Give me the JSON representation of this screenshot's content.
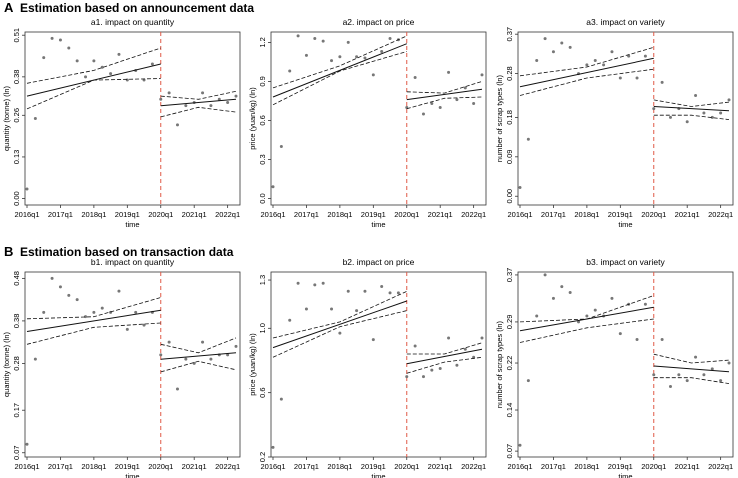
{
  "sections": [
    {
      "letter": "A",
      "title": "Estimation based on announcement data"
    },
    {
      "letter": "B",
      "title": "Estimation based on transaction data"
    }
  ],
  "chart_data": [
    {
      "type": "scatter",
      "section": 0,
      "panel": 0,
      "title": "a1. impact on quantity",
      "xlabel": "time",
      "ylabel": "quantity (tonne) (ln)",
      "xticks": [
        "2016q1",
        "2017q1",
        "2018q1",
        "2019q1",
        "2020q1",
        "2021q1",
        "2022q1"
      ],
      "yticks": [
        "0.00",
        "0.13",
        "0.26",
        "0.38",
        "0.51"
      ],
      "ylim": [
        -0.02,
        0.52
      ],
      "cutoff": "2020q1",
      "points": [
        [
          0,
          0.03
        ],
        [
          1,
          0.25
        ],
        [
          2,
          0.44
        ],
        [
          3,
          0.5
        ],
        [
          4,
          0.495
        ],
        [
          5,
          0.47
        ],
        [
          6,
          0.43
        ],
        [
          7,
          0.38
        ],
        [
          8,
          0.43
        ],
        [
          9,
          0.41
        ],
        [
          10,
          0.39
        ],
        [
          11,
          0.45
        ],
        [
          12,
          0.37
        ],
        [
          13,
          0.4
        ],
        [
          14,
          0.37
        ],
        [
          15,
          0.42
        ],
        [
          16,
          0.31
        ],
        [
          17,
          0.33
        ],
        [
          18,
          0.23
        ],
        [
          19,
          0.29
        ],
        [
          20,
          0.3
        ],
        [
          21,
          0.33
        ],
        [
          22,
          0.29
        ],
        [
          23,
          0.31
        ],
        [
          24,
          0.3
        ],
        [
          25,
          0.32
        ]
      ],
      "fit_pre": {
        "start": [
          0,
          0.32
        ],
        "end": [
          16,
          0.42
        ]
      },
      "ci_pre": {
        "upper": [
          [
            0,
            0.36
          ],
          [
            8,
            0.4
          ],
          [
            16,
            0.47
          ]
        ],
        "lower": [
          [
            0,
            0.28
          ],
          [
            8,
            0.37
          ],
          [
            16,
            0.375
          ]
        ]
      },
      "fit_post": {
        "start": [
          16,
          0.29
        ],
        "end": [
          25,
          0.31
        ]
      },
      "ci_post": {
        "upper": [
          [
            16,
            0.32
          ],
          [
            20.5,
            0.31
          ],
          [
            25,
            0.335
          ]
        ],
        "lower": [
          [
            16,
            0.255
          ],
          [
            20.5,
            0.285
          ],
          [
            25,
            0.27
          ]
        ]
      }
    },
    {
      "type": "scatter",
      "section": 0,
      "panel": 1,
      "title": "a2. impact on price",
      "xlabel": "time",
      "ylabel": "price (yuan/kg) (ln)",
      "xticks": [
        "2016q1",
        "2017q1",
        "2018q1",
        "2019q1",
        "2020q1",
        "2021q1",
        "2022q1"
      ],
      "yticks": [
        "0.0",
        "0.3",
        "0.6",
        "0.9",
        "1.2"
      ],
      "ylim": [
        -0.05,
        1.28
      ],
      "cutoff": "2020q1",
      "points": [
        [
          0,
          0.09
        ],
        [
          1,
          0.4
        ],
        [
          2,
          0.98
        ],
        [
          3,
          1.25
        ],
        [
          4,
          1.1
        ],
        [
          5,
          1.23
        ],
        [
          6,
          1.21
        ],
        [
          7,
          1.06
        ],
        [
          8,
          1.09
        ],
        [
          9,
          1.2
        ],
        [
          10,
          1.09
        ],
        [
          11,
          1.08
        ],
        [
          12,
          0.95
        ],
        [
          13,
          1.13
        ],
        [
          14,
          1.23
        ],
        [
          15,
          1.22
        ],
        [
          16,
          0.7
        ],
        [
          17,
          0.93
        ],
        [
          18,
          0.65
        ],
        [
          19,
          0.73
        ],
        [
          20,
          0.7
        ],
        [
          21,
          0.97
        ],
        [
          22,
          0.76
        ],
        [
          23,
          0.85
        ],
        [
          24,
          0.73
        ],
        [
          25,
          0.95
        ]
      ],
      "fit_pre": {
        "start": [
          0,
          0.78
        ],
        "end": [
          16,
          1.19
        ]
      },
      "ci_pre": {
        "upper": [
          [
            0,
            0.85
          ],
          [
            8,
            1.02
          ],
          [
            16,
            1.25
          ]
        ],
        "lower": [
          [
            0,
            0.72
          ],
          [
            8,
            0.98
          ],
          [
            16,
            1.13
          ]
        ]
      },
      "fit_post": {
        "start": [
          16,
          0.76
        ],
        "end": [
          25,
          0.84
        ]
      },
      "ci_post": {
        "upper": [
          [
            16,
            0.82
          ],
          [
            20.5,
            0.81
          ],
          [
            25,
            0.9
          ]
        ],
        "lower": [
          [
            16,
            0.69
          ],
          [
            20.5,
            0.77
          ],
          [
            25,
            0.78
          ]
        ]
      }
    },
    {
      "type": "scatter",
      "section": 0,
      "panel": 2,
      "title": "a3. impact on variety",
      "xlabel": "time",
      "ylabel": "number of scrap types (ln)",
      "xticks": [
        "2016q1",
        "2017q1",
        "2018q1",
        "2019q1",
        "2020q1",
        "2021q1",
        "2022q1"
      ],
      "yticks": [
        "0.00",
        "0.09",
        "0.18",
        "0.28",
        "0.37"
      ],
      "ylim": [
        -0.02,
        0.375
      ],
      "cutoff": "2020q1",
      "points": [
        [
          0,
          0.02
        ],
        [
          1,
          0.13
        ],
        [
          2,
          0.31
        ],
        [
          3,
          0.36
        ],
        [
          4,
          0.33
        ],
        [
          5,
          0.35
        ],
        [
          6,
          0.34
        ],
        [
          7,
          0.28
        ],
        [
          8,
          0.3
        ],
        [
          9,
          0.31
        ],
        [
          10,
          0.3
        ],
        [
          11,
          0.33
        ],
        [
          12,
          0.27
        ],
        [
          13,
          0.32
        ],
        [
          14,
          0.27
        ],
        [
          15,
          0.32
        ],
        [
          16,
          0.2
        ],
        [
          17,
          0.26
        ],
        [
          18,
          0.18
        ],
        [
          19,
          0.2
        ],
        [
          20,
          0.17
        ],
        [
          21,
          0.23
        ],
        [
          22,
          0.19
        ],
        [
          23,
          0.18
        ],
        [
          24,
          0.19
        ],
        [
          25,
          0.22
        ]
      ],
      "fit_pre": {
        "start": [
          0,
          0.25
        ],
        "end": [
          16,
          0.315
        ]
      },
      "ci_pre": {
        "upper": [
          [
            0,
            0.275
          ],
          [
            8,
            0.295
          ],
          [
            16,
            0.34
          ]
        ],
        "lower": [
          [
            0,
            0.23
          ],
          [
            8,
            0.27
          ],
          [
            16,
            0.29
          ]
        ]
      },
      "fit_post": {
        "start": [
          16,
          0.205
        ],
        "end": [
          25,
          0.195
        ]
      },
      "ci_post": {
        "upper": [
          [
            16,
            0.22
          ],
          [
            20.5,
            0.205
          ],
          [
            25,
            0.215
          ]
        ],
        "lower": [
          [
            16,
            0.185
          ],
          [
            20.5,
            0.185
          ],
          [
            25,
            0.175
          ]
        ]
      }
    },
    {
      "type": "scatter",
      "section": 1,
      "panel": 0,
      "title": "b1. impact on quantity",
      "xlabel": "time",
      "ylabel": "quantity (tonne) (ln)",
      "xticks": [
        "2016q1",
        "2017q1",
        "2018q1",
        "2019q1",
        "2020q1",
        "2021q1",
        "2022q1"
      ],
      "yticks": [
        "0.07",
        "0.17",
        "0.28",
        "0.38",
        "0.48"
      ],
      "ylim": [
        0.06,
        0.495
      ],
      "cutoff": "2020q1",
      "points": [
        [
          0,
          0.09
        ],
        [
          1,
          0.29
        ],
        [
          2,
          0.4
        ],
        [
          3,
          0.48
        ],
        [
          4,
          0.46
        ],
        [
          5,
          0.44
        ],
        [
          6,
          0.43
        ],
        [
          7,
          0.39
        ],
        [
          8,
          0.4
        ],
        [
          9,
          0.41
        ],
        [
          10,
          0.4
        ],
        [
          11,
          0.45
        ],
        [
          12,
          0.36
        ],
        [
          13,
          0.4
        ],
        [
          14,
          0.37
        ],
        [
          15,
          0.4
        ],
        [
          16,
          0.3
        ],
        [
          17,
          0.33
        ],
        [
          18,
          0.22
        ],
        [
          19,
          0.29
        ],
        [
          20,
          0.28
        ],
        [
          21,
          0.33
        ],
        [
          22,
          0.29
        ],
        [
          23,
          0.3
        ],
        [
          24,
          0.3
        ],
        [
          25,
          0.32
        ]
      ],
      "fit_pre": {
        "start": [
          0,
          0.355
        ],
        "end": [
          16,
          0.405
        ]
      },
      "ci_pre": {
        "upper": [
          [
            0,
            0.385
          ],
          [
            8,
            0.39
          ],
          [
            16,
            0.435
          ]
        ],
        "lower": [
          [
            0,
            0.325
          ],
          [
            8,
            0.365
          ],
          [
            16,
            0.375
          ]
        ]
      },
      "fit_post": {
        "start": [
          16,
          0.29
        ],
        "end": [
          25,
          0.305
        ]
      },
      "ci_post": {
        "upper": [
          [
            16,
            0.325
          ],
          [
            20.5,
            0.305
          ],
          [
            25,
            0.34
          ]
        ],
        "lower": [
          [
            16,
            0.26
          ],
          [
            20.5,
            0.285
          ],
          [
            25,
            0.265
          ]
        ]
      }
    },
    {
      "type": "scatter",
      "section": 1,
      "panel": 1,
      "title": "b2. impact on price",
      "xlabel": "time",
      "ylabel": "price (yuan/kg) (ln)",
      "xticks": [
        "2016q1",
        "2017q1",
        "2018q1",
        "2019q1",
        "2020q1",
        "2021q1",
        "2022q1"
      ],
      "yticks": [
        "0.2",
        "0.6",
        "1.0",
        "1.3"
      ],
      "ylim": [
        0.2,
        1.35
      ],
      "cutoff": "2020q1",
      "points": [
        [
          0,
          0.26
        ],
        [
          1,
          0.56
        ],
        [
          2,
          1.05
        ],
        [
          3,
          1.28
        ],
        [
          4,
          1.12
        ],
        [
          5,
          1.27
        ],
        [
          6,
          1.28
        ],
        [
          7,
          1.12
        ],
        [
          8,
          0.97
        ],
        [
          9,
          1.23
        ],
        [
          10,
          1.11
        ],
        [
          11,
          1.23
        ],
        [
          12,
          0.93
        ],
        [
          13,
          1.26
        ],
        [
          14,
          1.22
        ],
        [
          15,
          1.22
        ],
        [
          16,
          0.7
        ],
        [
          17,
          0.89
        ],
        [
          18,
          0.7
        ],
        [
          19,
          0.74
        ],
        [
          20,
          0.75
        ],
        [
          21,
          0.94
        ],
        [
          22,
          0.77
        ],
        [
          23,
          0.87
        ],
        [
          24,
          0.82
        ],
        [
          25,
          0.94
        ]
      ],
      "fit_pre": {
        "start": [
          0,
          0.88
        ],
        "end": [
          16,
          1.17
        ]
      },
      "ci_pre": {
        "upper": [
          [
            0,
            0.94
          ],
          [
            8,
            1.04
          ],
          [
            16,
            1.23
          ]
        ],
        "lower": [
          [
            0,
            0.82
          ],
          [
            8,
            1.01
          ],
          [
            16,
            1.11
          ]
        ]
      },
      "fit_post": {
        "start": [
          16,
          0.78
        ],
        "end": [
          25,
          0.87
        ]
      },
      "ci_post": {
        "upper": [
          [
            16,
            0.84
          ],
          [
            20.5,
            0.84
          ],
          [
            25,
            0.91
          ]
        ],
        "lower": [
          [
            16,
            0.72
          ],
          [
            20.5,
            0.79
          ],
          [
            25,
            0.82
          ]
        ]
      }
    },
    {
      "type": "scatter",
      "section": 1,
      "panel": 2,
      "title": "b3. impact on variety",
      "xlabel": "time",
      "ylabel": "number of scrap types (ln)",
      "xticks": [
        "2016q1",
        "2017q1",
        "2018q1",
        "2019q1",
        "2020q1",
        "2021q1",
        "2022q1"
      ],
      "yticks": [
        "0.07",
        "0.14",
        "0.22",
        "0.29",
        "0.37"
      ],
      "ylim": [
        0.06,
        0.375
      ],
      "cutoff": "2020q1",
      "points": [
        [
          0,
          0.08
        ],
        [
          1,
          0.19
        ],
        [
          2,
          0.3
        ],
        [
          3,
          0.37
        ],
        [
          4,
          0.33
        ],
        [
          5,
          0.35
        ],
        [
          6,
          0.34
        ],
        [
          7,
          0.29
        ],
        [
          8,
          0.3
        ],
        [
          9,
          0.31
        ],
        [
          10,
          0.3
        ],
        [
          11,
          0.33
        ],
        [
          12,
          0.27
        ],
        [
          13,
          0.32
        ],
        [
          14,
          0.26
        ],
        [
          15,
          0.32
        ],
        [
          16,
          0.2
        ],
        [
          17,
          0.26
        ],
        [
          18,
          0.18
        ],
        [
          19,
          0.2
        ],
        [
          20,
          0.19
        ],
        [
          21,
          0.23
        ],
        [
          22,
          0.2
        ],
        [
          23,
          0.21
        ],
        [
          24,
          0.19
        ],
        [
          25,
          0.22
        ]
      ],
      "fit_pre": {
        "start": [
          0,
          0.275
        ],
        "end": [
          16,
          0.315
        ]
      },
      "ci_pre": {
        "upper": [
          [
            0,
            0.29
          ],
          [
            8,
            0.295
          ],
          [
            16,
            0.335
          ]
        ],
        "lower": [
          [
            0,
            0.255
          ],
          [
            8,
            0.28
          ],
          [
            16,
            0.295
          ]
        ]
      },
      "fit_post": {
        "start": [
          16,
          0.215
        ],
        "end": [
          25,
          0.205
        ]
      },
      "ci_post": {
        "upper": [
          [
            16,
            0.235
          ],
          [
            20.5,
            0.22
          ],
          [
            25,
            0.225
          ]
        ],
        "lower": [
          [
            16,
            0.195
          ],
          [
            20.5,
            0.195
          ],
          [
            25,
            0.185
          ]
        ]
      }
    }
  ],
  "colors": {
    "cutoff": "#e05a47",
    "points": "#777777",
    "fit": "#111111"
  }
}
